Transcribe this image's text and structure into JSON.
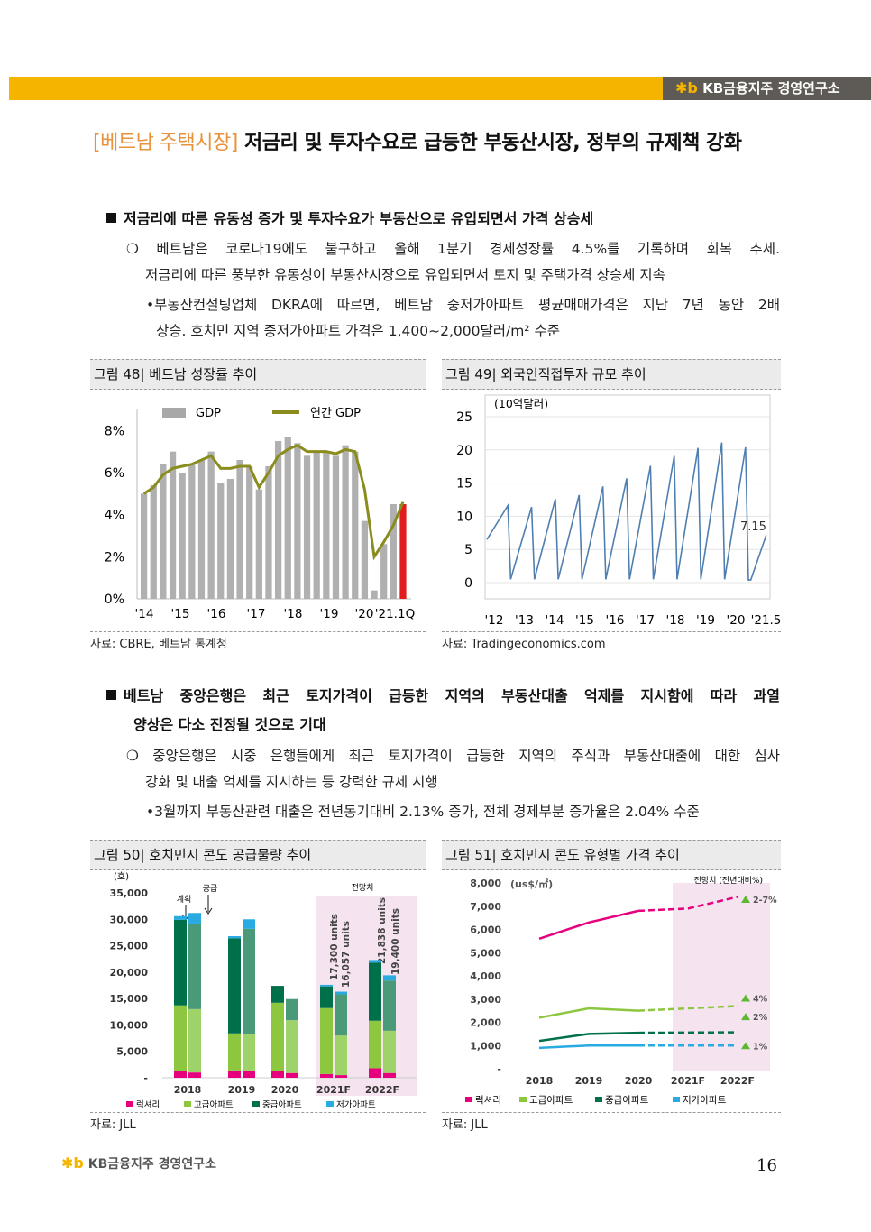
{
  "header": {
    "brand": "KB금융지주 경영연구소",
    "logo_symbol": "✱b"
  },
  "title": {
    "tag": "[베트남 주택시장]",
    "text": " 저금리 및 투자수요로 급등한 부동산시장, 정부의 규제책 강화"
  },
  "section1": {
    "heading": "저금리에 따른 유동성 증가 및 투자수요가 부동산으로 유입되면서 가격 상승세",
    "bullet_line1": "베트남은 코로나19에도 불구하고 올해 1분기 경제성장률 4.5%를 기록하며 회복 추세.",
    "bullet_line2": "저금리에 따른 풍부한 유동성이 부동산시장으로 유입되면서 토지 및 주택가격 상승세 지속",
    "sub_line1": "부동산컨설팅업체 DKRA에 따르면, 베트남 중저가아파트 평균매매가격은 지난 7년 동안 2배",
    "sub_line2": "상승. 호치민 지역 중저가아파트 가격은 1,400~2,000달러/m² 수준"
  },
  "fig48": {
    "caption": "그림 48| 베트남 성장률 추이",
    "source": "자료: CBRE, 베트남 통계청",
    "legend_bar": "GDP",
    "legend_line": "연간 GDP"
  },
  "fig49": {
    "caption": "그림 49| 외국인직접투자 규모 추이",
    "source": "자료: Tradingeconomics.com",
    "unit": "(10억달러)",
    "end_label": "7.15"
  },
  "section2": {
    "heading_line1": "베트남 중앙은행은 최근 토지가격이 급등한 지역의 부동산대출 억제를 지시함에 따라 과열",
    "heading_line2": "양상은 다소 진정될 것으로 기대",
    "bullet_line1": "중앙은행은 시중 은행들에게 최근 토지가격이 급등한 지역의 주식과 부동산대출에 대한 심사",
    "bullet_line2": "강화 및 대출 억제를 지시하는 등 강력한 규제 시행",
    "sub_line1": "3월까지 부동산관련 대출은 전년동기대비 2.13% 증가, 전체 경제부분 증가율은 2.04% 수준"
  },
  "fig50": {
    "caption": "그림 50| 호치민시 콘도 공급물량 추이",
    "source": "자료: JLL",
    "unit": "(호)",
    "annot_plan": "계획",
    "annot_supply": "공급",
    "annot_forecast": "전망치",
    "annot_2021_a": "17,300 units",
    "annot_2021_b": "16,057 units",
    "annot_2022_a": "21,838 units",
    "annot_2022_b": "19,400 units",
    "legend": [
      "럭셔리",
      "고급아파트",
      "중급아파트",
      "저가아파트"
    ]
  },
  "fig51": {
    "caption": "그림 51| 호치민시 콘도 유형별 가격 추이",
    "source": "자료: JLL",
    "unit": "(us$/㎡)",
    "forecast_label": "전망치 (전년대비%)",
    "growth_labels": [
      "2-7%",
      "4%",
      "2%",
      "1%"
    ],
    "legend": [
      "럭셔리",
      "고급아파트",
      "중급아파트",
      "저가아파트"
    ]
  },
  "page_number": "16",
  "colors": {
    "accent": "#F5B400",
    "tag": "#E8923C",
    "luxury": "#E6007E",
    "high": "#8DC63F",
    "mid": "#00704A",
    "low": "#29ABE2",
    "mid_plan": "#4A9A7A"
  },
  "chart_data": [
    {
      "type": "bar",
      "title": "베트남 성장률 추이",
      "x_tick_labels": [
        "'14",
        "'15",
        "'16",
        "'17",
        "'18",
        "'19",
        "'20",
        "'21.1Q"
      ],
      "y_tick_labels": [
        "0%",
        "2%",
        "4%",
        "6%",
        "8%"
      ],
      "ylim": [
        0,
        9
      ],
      "series": [
        {
          "name": "GDP",
          "kind": "bar",
          "values": [
            5.0,
            5.4,
            6.4,
            7.0,
            6.0,
            6.4,
            6.6,
            7.0,
            5.5,
            5.7,
            6.6,
            6.3,
            5.2,
            6.3,
            7.5,
            7.7,
            7.4,
            6.8,
            7.0,
            7.0,
            6.8,
            7.3,
            7.0,
            3.7,
            0.4,
            2.6,
            4.5,
            4.5
          ]
        },
        {
          "name": "연간 GDP",
          "kind": "line",
          "values": [
            5.0,
            5.3,
            5.9,
            6.2,
            6.3,
            6.4,
            6.6,
            6.8,
            6.2,
            6.2,
            6.3,
            6.3,
            5.3,
            6.0,
            6.8,
            7.1,
            7.3,
            7.0,
            7.0,
            7.0,
            6.9,
            7.1,
            7.0,
            5.2,
            2.0,
            2.7,
            3.5,
            4.6
          ]
        }
      ],
      "grid": false,
      "legend": "top"
    },
    {
      "type": "line",
      "title": "외국인직접투자 규모 추이",
      "x_tick_labels": [
        "'12",
        "'13",
        "'14",
        "'15",
        "'16",
        "'17",
        "'18",
        "'19",
        "'20",
        "'21.5"
      ],
      "y_tick_labels": [
        "0",
        "5",
        "10",
        "15",
        "20",
        "25"
      ],
      "ylim": [
        0,
        25
      ],
      "series": [
        {
          "name": "FDI",
          "peaks": [
            11.6,
            11.4,
            12.6,
            13.2,
            14.5,
            15.7,
            17.6,
            19.1,
            20.3,
            21.1,
            20.4
          ],
          "last": 7.15
        }
      ],
      "grid": true
    },
    {
      "type": "bar",
      "title": "호치민시 콘도 공급물량 추이",
      "categories": [
        "2018",
        "2019",
        "2020",
        "2021F",
        "2022F"
      ],
      "y_tick_labels": [
        "-",
        "5,000",
        "10,000",
        "15,000",
        "20,000",
        "25,000",
        "30,000",
        "35,000"
      ],
      "ylim": [
        0,
        35000
      ],
      "series": [
        {
          "name": "럭셔리",
          "plan": [
            1200,
            1400,
            1200,
            700,
            1800
          ],
          "supply": [
            1000,
            1200,
            900,
            500,
            900
          ]
        },
        {
          "name": "고급아파트",
          "plan": [
            12500,
            7000,
            13000,
            12500,
            9000
          ],
          "supply": [
            12000,
            7000,
            10000,
            7500,
            8000
          ]
        },
        {
          "name": "중급아파트",
          "plan": [
            16200,
            18000,
            3200,
            4100,
            11000
          ],
          "supply": [
            16200,
            20000,
            4000,
            7800,
            9500
          ]
        },
        {
          "name": "저가아파트",
          "plan": [
            700,
            400,
            0,
            300,
            500
          ],
          "supply": [
            2000,
            1800,
            0,
            500,
            1000
          ]
        }
      ],
      "forecast_region": [
        "2021F",
        "2022F"
      ]
    },
    {
      "type": "line",
      "title": "호치민시 콘도 유형별 가격 추이",
      "x": [
        "2018",
        "2019",
        "2020",
        "2021F",
        "2022F"
      ],
      "y_tick_labels": [
        "-",
        "1,000",
        "2,000",
        "3,000",
        "4,000",
        "5,000",
        "6,000",
        "7,000",
        "8,000"
      ],
      "ylim": [
        0,
        8000
      ],
      "series": [
        {
          "name": "럭셔리",
          "values": [
            5600,
            6300,
            6800,
            6900,
            7400
          ]
        },
        {
          "name": "고급아파트",
          "values": [
            2200,
            2600,
            2500,
            2600,
            2700
          ]
        },
        {
          "name": "중급아파트",
          "values": [
            1200,
            1500,
            1550,
            1560,
            1570
          ]
        },
        {
          "name": "저가아파트",
          "values": [
            900,
            1000,
            1000,
            1000,
            1000
          ]
        }
      ],
      "forecast_from": "2020"
    }
  ]
}
